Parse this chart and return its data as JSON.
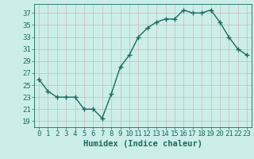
{
  "x": [
    0,
    1,
    2,
    3,
    4,
    5,
    6,
    7,
    8,
    9,
    10,
    11,
    12,
    13,
    14,
    15,
    16,
    17,
    18,
    19,
    20,
    21,
    22,
    23
  ],
  "y": [
    26,
    24,
    23,
    23,
    23,
    21,
    21,
    19.5,
    23.5,
    28,
    30,
    33,
    34.5,
    35.5,
    36,
    36,
    37.5,
    37,
    37,
    37.5,
    35.5,
    33,
    31,
    30
  ],
  "line_color": "#1a6b5e",
  "marker": "+",
  "bg_color": "#cceee8",
  "grid_color": "#c8b8b8",
  "xlabel": "Humidex (Indice chaleur)",
  "ylabel_ticks": [
    19,
    21,
    23,
    25,
    27,
    29,
    31,
    33,
    35,
    37
  ],
  "ylim": [
    18.0,
    38.5
  ],
  "xlim": [
    -0.5,
    23.5
  ],
  "xlabel_fontsize": 7.5,
  "tick_fontsize": 6.5,
  "line_width": 1.0,
  "marker_size": 4
}
